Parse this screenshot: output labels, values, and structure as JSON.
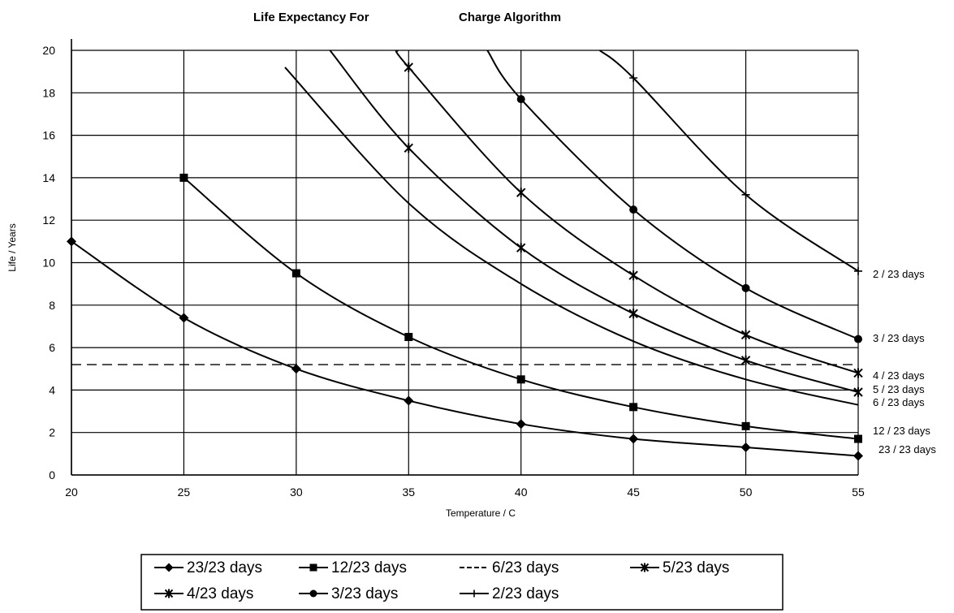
{
  "chart_data": {
    "type": "line",
    "title_left": "Life Expectancy For",
    "title_right": "Charge Algorithm",
    "xlabel": "Temperature / C",
    "ylabel": "Life / Years",
    "xlim": [
      20,
      55
    ],
    "ylim": [
      0,
      20
    ],
    "x_ticks": [
      20,
      25,
      30,
      35,
      40,
      45,
      50,
      55
    ],
    "x_tick_labels": [
      "20",
      "25",
      "30",
      "35",
      "40",
      "45",
      "50",
      "55"
    ],
    "y_ticks": [
      0,
      2,
      4,
      6,
      8,
      10,
      12,
      14,
      16,
      18,
      20
    ],
    "y_tick_labels": [
      "0",
      "2",
      "4",
      "6",
      "8",
      "10",
      "12",
      "14",
      "16",
      "18",
      "20"
    ],
    "grid": true,
    "reference_line": {
      "y": 5.2,
      "style": "dashed"
    },
    "series": [
      {
        "name": "23/23 days",
        "end_label": "23 / 23 days",
        "marker": "diamond",
        "x": [
          20,
          25,
          30,
          35,
          40,
          45,
          50,
          55
        ],
        "y": [
          11,
          7.4,
          5.0,
          3.5,
          2.4,
          1.7,
          1.3,
          0.9
        ]
      },
      {
        "name": "12/23 days",
        "end_label": "12 / 23 days",
        "marker": "square",
        "x": [
          25,
          30,
          35,
          40,
          45,
          50,
          55
        ],
        "y": [
          14,
          9.5,
          6.5,
          4.5,
          3.2,
          2.3,
          1.7
        ]
      },
      {
        "name": "6/23 days",
        "end_label": "6 / 23 days",
        "marker": "none",
        "x": [
          29.5,
          35,
          40,
          45,
          50,
          55
        ],
        "y": [
          19.2,
          12.8,
          9.0,
          6.3,
          4.5,
          3.3
        ]
      },
      {
        "name": "5/23 days",
        "end_label": "5 / 23 days",
        "marker": "star",
        "x": [
          31.5,
          35,
          40,
          45,
          50,
          55
        ],
        "y": [
          20,
          15.4,
          10.7,
          7.6,
          5.4,
          3.9
        ]
      },
      {
        "name": "4/23 days",
        "end_label": "4 / 23 days",
        "marker": "star",
        "x": [
          34.5,
          35,
          40,
          45,
          50,
          55
        ],
        "y": [
          20,
          19.2,
          13.3,
          9.4,
          6.6,
          4.8
        ]
      },
      {
        "name": "3/23 days",
        "end_label": "3 / 23 days",
        "marker": "circle",
        "x": [
          38.5,
          40,
          45,
          50,
          55
        ],
        "y": [
          20,
          17.7,
          12.5,
          8.8,
          6.4
        ]
      },
      {
        "name": "2/23 days",
        "end_label": "2 / 23 days",
        "marker": "plus",
        "x": [
          43.5,
          45,
          50,
          55
        ],
        "y": [
          20,
          18.7,
          13.2,
          9.6
        ]
      }
    ],
    "legend": {
      "placement": "bottom",
      "entries": [
        "23/23 days",
        "12/23 days",
        "6/23 days",
        "5/23 days",
        "4/23 days",
        "3/23 days",
        "2/23 days"
      ]
    }
  }
}
